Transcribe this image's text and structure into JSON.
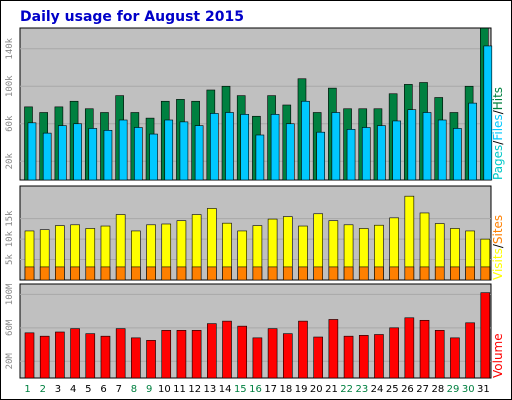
{
  "colors": {
    "background": "#ffffff",
    "panel": "#c0c0c0",
    "grid": "#a8a8a8",
    "title": "#0000c8",
    "hits": "#008040",
    "files": "#00c8ff",
    "pages": "#00c8c8",
    "visits": "#ffff00",
    "sites": "#ff8000",
    "volume": "#ff0000",
    "weekday_label": "#000000",
    "weekend_label": "#008040",
    "tick_label": "#888888"
  },
  "chart_data": [
    {
      "type": "bar",
      "title": "Daily usage for August 2015",
      "categories": [
        "1",
        "2",
        "3",
        "4",
        "5",
        "6",
        "7",
        "8",
        "9",
        "10",
        "11",
        "12",
        "13",
        "14",
        "15",
        "16",
        "17",
        "18",
        "19",
        "20",
        "21",
        "22",
        "23",
        "24",
        "25",
        "26",
        "27",
        "28",
        "29",
        "30",
        "31"
      ],
      "weekend_days": [
        "1",
        "2",
        "8",
        "9",
        "15",
        "16",
        "22",
        "23",
        "29",
        "30"
      ],
      "ylim": [
        0,
        160000
      ],
      "y_ticks": [
        "20k",
        "60k",
        "100k",
        "140k"
      ],
      "y_tick_values": [
        20000,
        60000,
        100000,
        140000
      ],
      "legend": [
        "Pages",
        "Files",
        "Hits"
      ],
      "legend_separator": "/",
      "series": [
        {
          "name": "Hits",
          "values": [
            78000,
            72000,
            78000,
            84000,
            76000,
            72000,
            90000,
            72000,
            66000,
            84000,
            86000,
            84000,
            96000,
            100000,
            90000,
            68000,
            90000,
            80000,
            108000,
            72000,
            98000,
            76000,
            76000,
            76000,
            92000,
            102000,
            104000,
            88000,
            72000,
            100000,
            162000
          ]
        },
        {
          "name": "Files",
          "values": [
            61000,
            50000,
            58000,
            60000,
            55000,
            53000,
            64000,
            56000,
            49000,
            64000,
            62000,
            58000,
            71000,
            72000,
            70000,
            48000,
            70000,
            60000,
            84000,
            51000,
            72000,
            54000,
            56000,
            58000,
            63000,
            75000,
            72000,
            64000,
            55000,
            82000,
            143000
          ]
        }
      ]
    },
    {
      "type": "bar",
      "categories": [
        "1",
        "2",
        "3",
        "4",
        "5",
        "6",
        "7",
        "8",
        "9",
        "10",
        "11",
        "12",
        "13",
        "14",
        "15",
        "16",
        "17",
        "18",
        "19",
        "20",
        "21",
        "22",
        "23",
        "24",
        "25",
        "26",
        "27",
        "28",
        "29",
        "30",
        "31"
      ],
      "ylim": [
        0,
        22500
      ],
      "y_ticks": [
        "5k",
        "10k",
        "15k"
      ],
      "y_tick_values": [
        5000,
        10000,
        15000
      ],
      "legend": [
        "Visits",
        "Sites"
      ],
      "legend_separator": "/",
      "series": [
        {
          "name": "Visits",
          "values": [
            12000,
            12300,
            13300,
            13500,
            12600,
            13200,
            16000,
            12000,
            13500,
            13700,
            14500,
            16000,
            17500,
            13900,
            12000,
            13300,
            14900,
            15500,
            13200,
            16200,
            14500,
            13500,
            12600,
            13400,
            15200,
            20500,
            16400,
            13800,
            12600,
            12000,
            10000
          ]
        },
        {
          "name": "Sites",
          "values": [
            3200,
            3200,
            3200,
            3200,
            3200,
            3200,
            3200,
            3200,
            3200,
            3200,
            3200,
            3200,
            3200,
            3200,
            3200,
            3200,
            3200,
            3200,
            3200,
            3200,
            3200,
            3200,
            3200,
            3200,
            3200,
            3200,
            3200,
            3200,
            3200,
            3200,
            3200
          ]
        }
      ]
    },
    {
      "type": "bar",
      "categories": [
        "1",
        "2",
        "3",
        "4",
        "5",
        "6",
        "7",
        "8",
        "9",
        "10",
        "11",
        "12",
        "13",
        "14",
        "15",
        "16",
        "17",
        "18",
        "19",
        "20",
        "21",
        "22",
        "23",
        "24",
        "25",
        "26",
        "27",
        "28",
        "29",
        "30",
        "31"
      ],
      "ylim": [
        0,
        110000000
      ],
      "y_ticks": [
        "20M",
        "60M",
        "100M"
      ],
      "y_tick_values": [
        20000000,
        60000000,
        100000000
      ],
      "legend": [
        "Volume"
      ],
      "legend_separator": "/",
      "series": [
        {
          "name": "Volume",
          "values": [
            54000000,
            50000000,
            55000000,
            59000000,
            53000000,
            50000000,
            59000000,
            48000000,
            45000000,
            57000000,
            57000000,
            57000000,
            65000000,
            68000000,
            62000000,
            48000000,
            59000000,
            53000000,
            68000000,
            49000000,
            70000000,
            50000000,
            51000000,
            52000000,
            60000000,
            72000000,
            69000000,
            57000000,
            48000000,
            66000000,
            102000000
          ]
        }
      ]
    }
  ]
}
